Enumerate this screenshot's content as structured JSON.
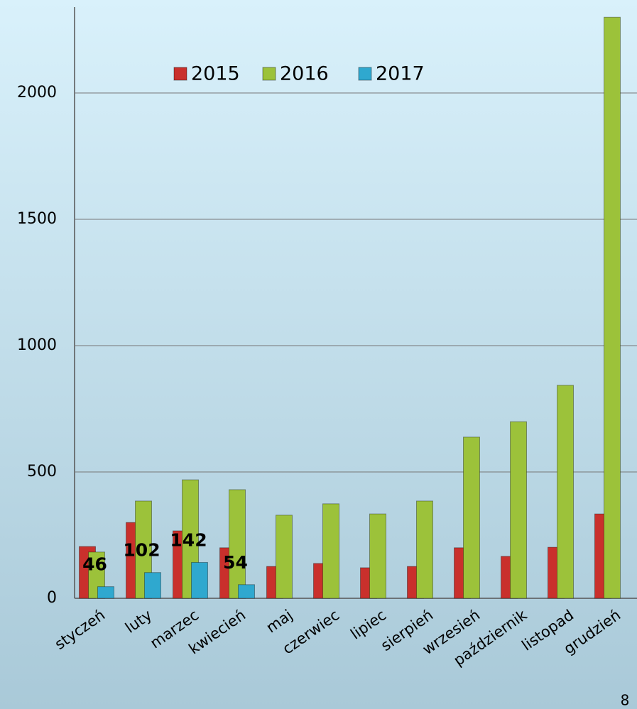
{
  "chart_data": {
    "type": "bar",
    "categories": [
      "styczeń",
      "luty",
      "marzec",
      "kwiecień",
      "maj",
      "czerwiec",
      "lipiec",
      "sierpień",
      "wrzesień",
      "październik",
      "listopad",
      "grudzień"
    ],
    "series": [
      {
        "name": "2015",
        "color": "#c9302c",
        "values": [
          205,
          300,
          267,
          200,
          126,
          138,
          121,
          126,
          200,
          166,
          202,
          334
        ]
      },
      {
        "name": "2016",
        "color": "#9cc23a",
        "values": [
          183,
          385,
          469,
          430,
          329,
          374,
          334,
          385,
          638,
          699,
          843,
          2300
        ]
      },
      {
        "name": "2017",
        "color": "#2fa8cf",
        "values": [
          46,
          102,
          142,
          54,
          null,
          null,
          null,
          null,
          null,
          null,
          null,
          null
        ]
      }
    ],
    "ylim": [
      0,
      2340
    ],
    "yticks": [
      0,
      500,
      1000,
      1500,
      2000
    ],
    "grid": true
  },
  "page_number": "8"
}
